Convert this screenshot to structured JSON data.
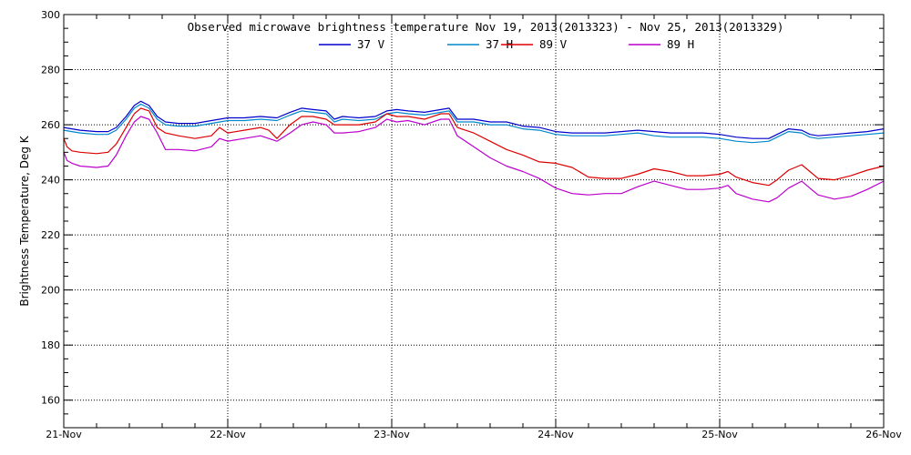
{
  "chart_data": {
    "type": "line",
    "title": "Observed microwave brightness temperature Nov 19, 2013(2013323) - Nov 25, 2013(2013329)",
    "xlabel": "",
    "ylabel": "Brightness Temperature, Deg K",
    "xlim": [
      "21-Nov",
      "26-Nov"
    ],
    "ylim": [
      150,
      300
    ],
    "x_ticks": [
      "21-Nov",
      "22-Nov",
      "23-Nov",
      "24-Nov",
      "25-Nov",
      "26-Nov"
    ],
    "y_ticks": [
      160,
      180,
      200,
      220,
      240,
      260,
      280,
      300
    ],
    "grid": true,
    "legend_position": "top-center",
    "series": [
      {
        "name": "37 V",
        "color": "#0000cc",
        "points": [
          [
            0.0,
            259
          ],
          [
            0.05,
            258.5
          ],
          [
            0.1,
            258
          ],
          [
            0.2,
            257.5
          ],
          [
            0.27,
            257.5
          ],
          [
            0.32,
            259
          ],
          [
            0.38,
            263
          ],
          [
            0.43,
            267
          ],
          [
            0.47,
            268.5
          ],
          [
            0.52,
            267
          ],
          [
            0.57,
            263
          ],
          [
            0.62,
            261
          ],
          [
            0.7,
            260.5
          ],
          [
            0.8,
            260.5
          ],
          [
            0.9,
            261.5
          ],
          [
            1.0,
            262.5
          ],
          [
            1.1,
            262.5
          ],
          [
            1.2,
            263
          ],
          [
            1.3,
            262.5
          ],
          [
            1.38,
            264.5
          ],
          [
            1.45,
            266
          ],
          [
            1.52,
            265.5
          ],
          [
            1.6,
            265
          ],
          [
            1.65,
            262
          ],
          [
            1.7,
            263
          ],
          [
            1.8,
            262.5
          ],
          [
            1.9,
            263
          ],
          [
            1.97,
            265
          ],
          [
            2.03,
            265.5
          ],
          [
            2.1,
            265
          ],
          [
            2.2,
            264.5
          ],
          [
            2.3,
            265.5
          ],
          [
            2.35,
            266
          ],
          [
            2.4,
            262
          ],
          [
            2.5,
            262
          ],
          [
            2.6,
            261
          ],
          [
            2.7,
            261
          ],
          [
            2.8,
            259.5
          ],
          [
            2.9,
            259
          ],
          [
            3.0,
            257.5
          ],
          [
            3.1,
            257
          ],
          [
            3.2,
            257
          ],
          [
            3.3,
            257
          ],
          [
            3.4,
            257.5
          ],
          [
            3.5,
            258
          ],
          [
            3.6,
            257.5
          ],
          [
            3.7,
            257
          ],
          [
            3.8,
            257
          ],
          [
            3.9,
            257
          ],
          [
            4.0,
            256.5
          ],
          [
            4.1,
            255.5
          ],
          [
            4.2,
            255
          ],
          [
            4.3,
            255
          ],
          [
            4.35,
            256.5
          ],
          [
            4.42,
            258.5
          ],
          [
            4.5,
            258
          ],
          [
            4.55,
            256.5
          ],
          [
            4.6,
            256
          ],
          [
            4.7,
            256.5
          ],
          [
            4.8,
            257
          ],
          [
            4.9,
            257.5
          ],
          [
            5.0,
            258.5
          ]
        ]
      },
      {
        "name": "37 H",
        "color": "#0088cc",
        "points": [
          [
            0.0,
            258
          ],
          [
            0.05,
            257.5
          ],
          [
            0.1,
            257
          ],
          [
            0.2,
            256.5
          ],
          [
            0.27,
            256.5
          ],
          [
            0.32,
            258
          ],
          [
            0.38,
            262
          ],
          [
            0.43,
            266
          ],
          [
            0.47,
            267.5
          ],
          [
            0.52,
            266
          ],
          [
            0.57,
            262
          ],
          [
            0.62,
            260
          ],
          [
            0.7,
            259.5
          ],
          [
            0.8,
            259.5
          ],
          [
            0.9,
            260.5
          ],
          [
            1.0,
            261.5
          ],
          [
            1.1,
            261.5
          ],
          [
            1.2,
            262
          ],
          [
            1.3,
            261.5
          ],
          [
            1.38,
            263.5
          ],
          [
            1.45,
            265
          ],
          [
            1.52,
            264.5
          ],
          [
            1.6,
            264
          ],
          [
            1.65,
            261
          ],
          [
            1.7,
            262
          ],
          [
            1.8,
            261.5
          ],
          [
            1.9,
            262
          ],
          [
            1.97,
            264
          ],
          [
            2.03,
            264.5
          ],
          [
            2.1,
            264
          ],
          [
            2.2,
            263.5
          ],
          [
            2.3,
            264.5
          ],
          [
            2.35,
            265
          ],
          [
            2.4,
            261
          ],
          [
            2.5,
            261
          ],
          [
            2.6,
            260
          ],
          [
            2.7,
            260
          ],
          [
            2.8,
            258.5
          ],
          [
            2.9,
            258
          ],
          [
            3.0,
            256.5
          ],
          [
            3.1,
            256
          ],
          [
            3.2,
            256
          ],
          [
            3.3,
            256
          ],
          [
            3.4,
            256.5
          ],
          [
            3.5,
            257
          ],
          [
            3.6,
            256
          ],
          [
            3.7,
            255.5
          ],
          [
            3.8,
            255.5
          ],
          [
            3.9,
            255.5
          ],
          [
            4.0,
            255
          ],
          [
            4.1,
            254
          ],
          [
            4.2,
            253.5
          ],
          [
            4.3,
            254
          ],
          [
            4.35,
            255.5
          ],
          [
            4.42,
            257.5
          ],
          [
            4.5,
            257
          ],
          [
            4.55,
            255.5
          ],
          [
            4.6,
            255
          ],
          [
            4.7,
            255.5
          ],
          [
            4.8,
            256
          ],
          [
            4.9,
            256.5
          ],
          [
            5.0,
            257
          ]
        ]
      },
      {
        "name": "89 V",
        "color": "#dd0000",
        "points": [
          [
            0.0,
            255
          ],
          [
            0.02,
            252
          ],
          [
            0.05,
            250.5
          ],
          [
            0.1,
            250
          ],
          [
            0.2,
            249.5
          ],
          [
            0.27,
            250
          ],
          [
            0.32,
            253
          ],
          [
            0.38,
            259
          ],
          [
            0.43,
            264
          ],
          [
            0.47,
            266
          ],
          [
            0.52,
            265
          ],
          [
            0.57,
            259
          ],
          [
            0.62,
            257
          ],
          [
            0.7,
            256
          ],
          [
            0.8,
            255
          ],
          [
            0.9,
            256
          ],
          [
            0.95,
            259
          ],
          [
            1.0,
            257
          ],
          [
            1.1,
            258
          ],
          [
            1.2,
            259
          ],
          [
            1.25,
            258
          ],
          [
            1.3,
            255
          ],
          [
            1.38,
            260
          ],
          [
            1.45,
            263
          ],
          [
            1.52,
            263
          ],
          [
            1.6,
            262
          ],
          [
            1.65,
            260
          ],
          [
            1.7,
            260
          ],
          [
            1.8,
            260
          ],
          [
            1.9,
            261
          ],
          [
            1.97,
            264
          ],
          [
            2.03,
            263
          ],
          [
            2.1,
            263
          ],
          [
            2.2,
            262
          ],
          [
            2.3,
            264
          ],
          [
            2.35,
            264
          ],
          [
            2.4,
            259
          ],
          [
            2.5,
            257
          ],
          [
            2.6,
            254
          ],
          [
            2.7,
            251
          ],
          [
            2.8,
            249
          ],
          [
            2.9,
            246.5
          ],
          [
            3.0,
            246
          ],
          [
            3.1,
            244.5
          ],
          [
            3.2,
            241
          ],
          [
            3.3,
            240.5
          ],
          [
            3.4,
            240.5
          ],
          [
            3.5,
            242
          ],
          [
            3.6,
            244
          ],
          [
            3.7,
            243
          ],
          [
            3.8,
            241.5
          ],
          [
            3.9,
            241.5
          ],
          [
            4.0,
            242
          ],
          [
            4.05,
            243
          ],
          [
            4.1,
            241
          ],
          [
            4.2,
            239
          ],
          [
            4.3,
            238
          ],
          [
            4.35,
            240
          ],
          [
            4.42,
            243.5
          ],
          [
            4.5,
            245.5
          ],
          [
            4.55,
            243
          ],
          [
            4.6,
            240.5
          ],
          [
            4.7,
            240
          ],
          [
            4.8,
            241.5
          ],
          [
            4.9,
            243.5
          ],
          [
            5.0,
            245
          ]
        ]
      },
      {
        "name": "89 H",
        "color": "#bb00cc",
        "points": [
          [
            0.0,
            250
          ],
          [
            0.02,
            247
          ],
          [
            0.05,
            246
          ],
          [
            0.1,
            245
          ],
          [
            0.2,
            244.5
          ],
          [
            0.27,
            245
          ],
          [
            0.32,
            249
          ],
          [
            0.38,
            256
          ],
          [
            0.43,
            261
          ],
          [
            0.47,
            263
          ],
          [
            0.52,
            262
          ],
          [
            0.57,
            257
          ],
          [
            0.62,
            251
          ],
          [
            0.7,
            251
          ],
          [
            0.8,
            250.5
          ],
          [
            0.9,
            252
          ],
          [
            0.95,
            255
          ],
          [
            1.0,
            254
          ],
          [
            1.1,
            255
          ],
          [
            1.2,
            256
          ],
          [
            1.25,
            255
          ],
          [
            1.3,
            254
          ],
          [
            1.38,
            257
          ],
          [
            1.45,
            260
          ],
          [
            1.52,
            261
          ],
          [
            1.6,
            260
          ],
          [
            1.65,
            257
          ],
          [
            1.7,
            257
          ],
          [
            1.8,
            257.5
          ],
          [
            1.9,
            259
          ],
          [
            1.97,
            262
          ],
          [
            2.03,
            261
          ],
          [
            2.1,
            261.5
          ],
          [
            2.2,
            260
          ],
          [
            2.3,
            262
          ],
          [
            2.35,
            262
          ],
          [
            2.4,
            256
          ],
          [
            2.5,
            252
          ],
          [
            2.6,
            248
          ],
          [
            2.7,
            245
          ],
          [
            2.8,
            243
          ],
          [
            2.9,
            240.5
          ],
          [
            3.0,
            237
          ],
          [
            3.1,
            235
          ],
          [
            3.2,
            234.5
          ],
          [
            3.3,
            235
          ],
          [
            3.4,
            235
          ],
          [
            3.5,
            237.5
          ],
          [
            3.6,
            239.5
          ],
          [
            3.7,
            238
          ],
          [
            3.8,
            236.5
          ],
          [
            3.9,
            236.5
          ],
          [
            4.0,
            237
          ],
          [
            4.05,
            238
          ],
          [
            4.1,
            235
          ],
          [
            4.2,
            233
          ],
          [
            4.3,
            232
          ],
          [
            4.35,
            233.5
          ],
          [
            4.42,
            237
          ],
          [
            4.5,
            239.5
          ],
          [
            4.55,
            237
          ],
          [
            4.6,
            234.5
          ],
          [
            4.7,
            233
          ],
          [
            4.8,
            234
          ],
          [
            4.9,
            236.5
          ],
          [
            5.0,
            239.5
          ]
        ]
      }
    ]
  }
}
